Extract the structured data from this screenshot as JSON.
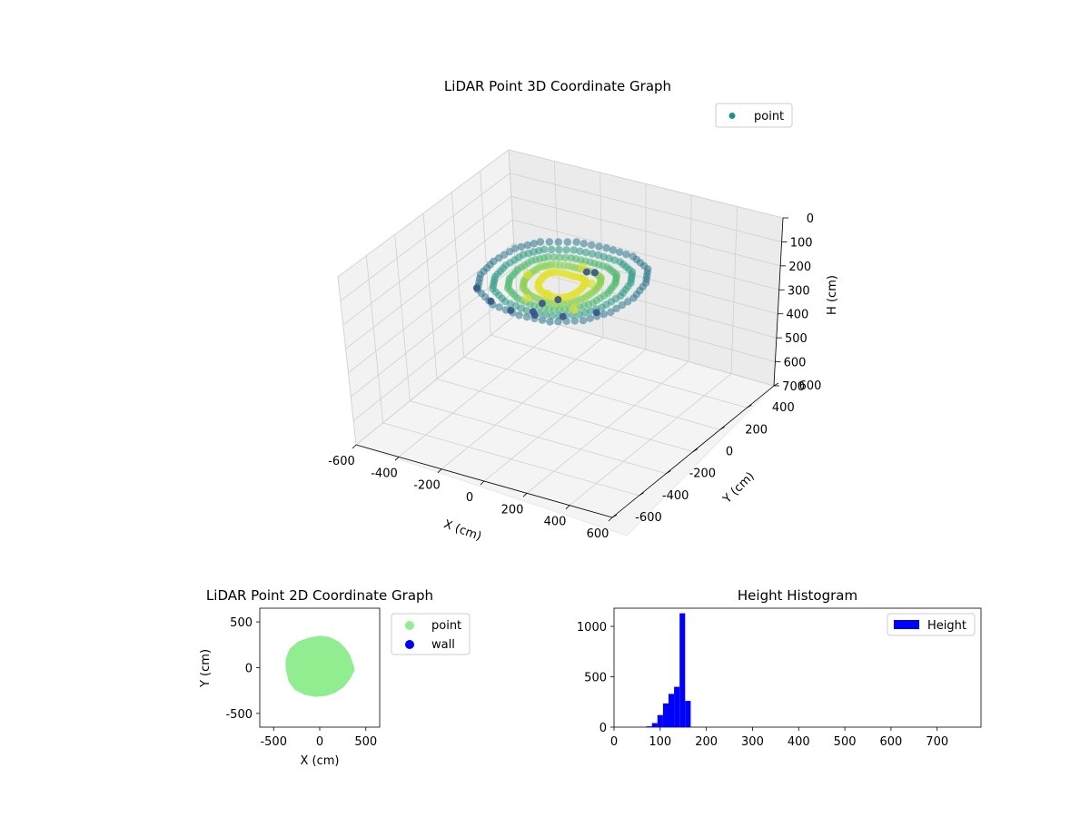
{
  "chart_data": [
    {
      "type": "scatter3d",
      "title": "LiDAR Point 3D Coordinate Graph",
      "xlabel": "X (cm)",
      "ylabel": "Y (cm)",
      "zlabel": "H (cm)",
      "xlim": [
        -600,
        600
      ],
      "ylim": [
        -600,
        600
      ],
      "zlim": [
        0,
        700
      ],
      "z_inverted": true,
      "xticks": [
        "-600",
        "-400",
        "-200",
        "0",
        "200",
        "400",
        "600"
      ],
      "yticks": [
        "-600",
        "-400",
        "-200",
        "0",
        "200",
        "400",
        "600"
      ],
      "zticks": [
        "0",
        "100",
        "200",
        "300",
        "400",
        "500",
        "600",
        "700"
      ],
      "legend": {
        "position": "upper-right",
        "entries": [
          {
            "label": "point",
            "color": "#21918c"
          }
        ]
      },
      "colormap": "viridis",
      "series": [
        {
          "name": "point",
          "points": [
            [
              -300,
              0,
              130
            ],
            [
              -280,
              120,
              125
            ],
            [
              -230,
              220,
              130
            ],
            [
              -120,
              300,
              140
            ],
            [
              0,
              320,
              145
            ],
            [
              130,
              300,
              140
            ],
            [
              240,
              230,
              135
            ],
            [
              300,
              120,
              130
            ],
            [
              320,
              0,
              135
            ],
            [
              300,
              -130,
              140
            ],
            [
              240,
              -230,
              145
            ],
            [
              130,
              -290,
              150
            ],
            [
              0,
              -300,
              150
            ],
            [
              -130,
              -280,
              145
            ],
            [
              -240,
              -210,
              140
            ],
            [
              -290,
              -110,
              135
            ],
            [
              -150,
              0,
              150
            ],
            [
              0,
              -100,
              150
            ],
            [
              100,
              50,
              150
            ],
            [
              0,
              150,
              150
            ],
            [
              -60,
              -150,
              160
            ],
            [
              150,
              -150,
              155
            ]
          ]
        },
        {
          "name": "wall",
          "points": [
            [
              -250,
              -200,
              140
            ],
            [
              -150,
              -260,
              145
            ],
            [
              -50,
              -280,
              150
            ],
            [
              50,
              -270,
              150
            ],
            [
              150,
              -230,
              150
            ],
            [
              250,
              -150,
              145
            ],
            [
              40,
              -200,
              135
            ],
            [
              50,
              100,
              135
            ],
            [
              80,
              110,
              135
            ],
            [
              60,
              -120,
              150
            ],
            [
              30,
              -250,
              150
            ]
          ]
        }
      ]
    },
    {
      "type": "scatter",
      "title": "LiDAR Point 2D Coordinate Graph",
      "xlabel": "X (cm)",
      "ylabel": "Y (cm)",
      "xlim": [
        -650,
        650
      ],
      "ylim": [
        -650,
        650
      ],
      "xticks": [
        "-500",
        "0",
        "500"
      ],
      "yticks": [
        "-500",
        "0",
        "500"
      ],
      "legend": {
        "position": "outside-upper-right",
        "entries": [
          {
            "label": "point",
            "color": "#90ee90"
          },
          {
            "label": "wall",
            "color": "#0000ff"
          }
        ]
      },
      "series": [
        {
          "name": "point",
          "boundary": [
            [
              -340,
              0
            ],
            [
              -340,
              90
            ],
            [
              -300,
              190
            ],
            [
              -220,
              260
            ],
            [
              -110,
              300
            ],
            [
              0,
              320
            ],
            [
              90,
              310
            ],
            [
              190,
              260
            ],
            [
              250,
              200
            ],
            [
              300,
              130
            ],
            [
              330,
              40
            ],
            [
              350,
              -20
            ],
            [
              310,
              -100
            ],
            [
              240,
              -190
            ],
            [
              150,
              -250
            ],
            [
              60,
              -280
            ],
            [
              -40,
              -290
            ],
            [
              -150,
              -270
            ],
            [
              -250,
              -220
            ],
            [
              -310,
              -140
            ]
          ]
        },
        {
          "name": "wall",
          "points": []
        }
      ]
    },
    {
      "type": "bar",
      "title": "Height Histogram",
      "xlabel": "",
      "ylabel": "",
      "xlim": [
        0,
        795
      ],
      "ylim": [
        0,
        1180
      ],
      "xticks": [
        "0",
        "100",
        "200",
        "300",
        "400",
        "500",
        "600",
        "700"
      ],
      "yticks": [
        "0",
        "500",
        "1000"
      ],
      "legend": {
        "position": "upper-right",
        "entries": [
          {
            "label": "Height",
            "color": "#0000ff"
          }
        ]
      },
      "bin_width": 12,
      "bins": [
        {
          "x": 70,
          "count": 8
        },
        {
          "x": 82,
          "count": 40
        },
        {
          "x": 94,
          "count": 120
        },
        {
          "x": 106,
          "count": 235
        },
        {
          "x": 118,
          "count": 330
        },
        {
          "x": 130,
          "count": 400
        },
        {
          "x": 142,
          "count": 1130
        },
        {
          "x": 154,
          "count": 260
        }
      ]
    }
  ]
}
